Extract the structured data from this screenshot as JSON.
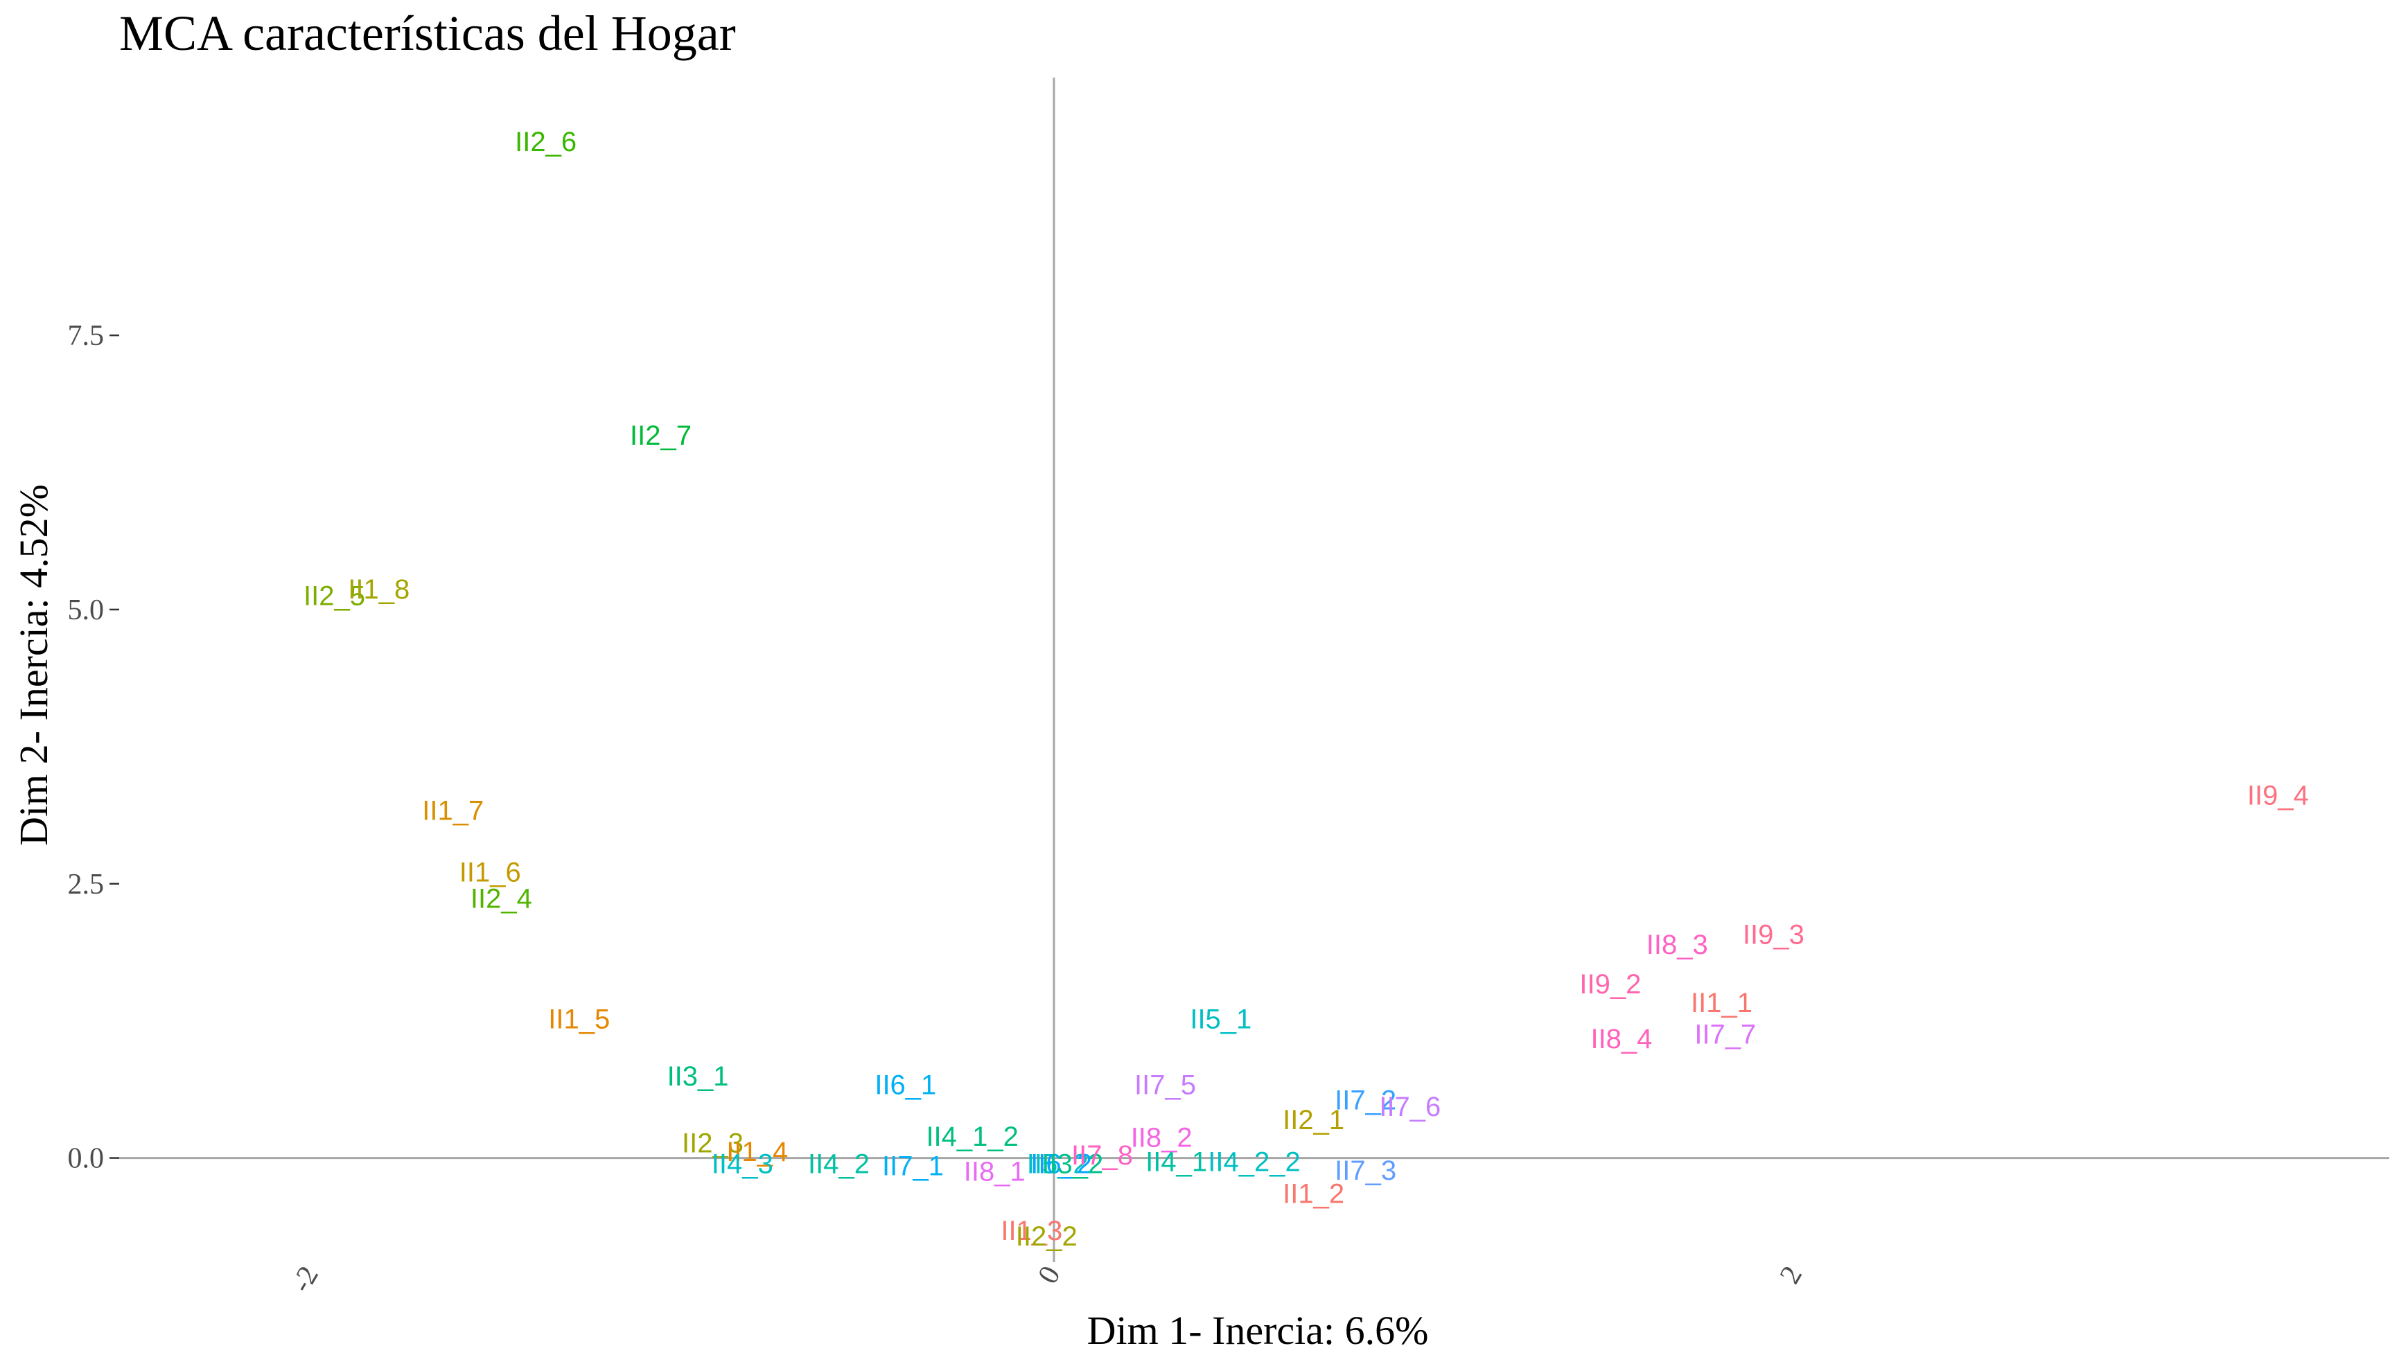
{
  "chart_data": {
    "type": "scatter",
    "title": "MCA características del Hogar",
    "xlabel": "Dim 1- Inercia: 6.6%",
    "ylabel": "Dim 2- Inercia: 4.52%",
    "xlim": [
      -2.52,
      3.6
    ],
    "ylim": [
      -0.95,
      9.85
    ],
    "x_ticks": [
      {
        "value": -2,
        "label": "-2"
      },
      {
        "value": 0,
        "label": "0"
      },
      {
        "value": 2,
        "label": "2"
      }
    ],
    "y_ticks": [
      {
        "value": 0,
        "label": "0.0"
      },
      {
        "value": 2.5,
        "label": "2.5"
      },
      {
        "value": 5,
        "label": "5.0"
      },
      {
        "value": 7.5,
        "label": "7.5"
      }
    ],
    "grid": false,
    "legend": "none",
    "points": [
      {
        "label": "II2_6",
        "x": -1.37,
        "y": 9.27,
        "color": "#39b600"
      },
      {
        "label": "II2_7",
        "x": -1.06,
        "y": 6.59,
        "color": "#00ba38"
      },
      {
        "label": "II2_5",
        "x": -1.94,
        "y": 5.13,
        "color": "#7cae00"
      },
      {
        "label": "II1_8",
        "x": -1.82,
        "y": 5.19,
        "color": "#a3a500"
      },
      {
        "label": "II1_7",
        "x": -1.62,
        "y": 3.17,
        "color": "#d89000"
      },
      {
        "label": "II1_6",
        "x": -1.52,
        "y": 2.61,
        "color": "#c49a00"
      },
      {
        "label": "II2_4",
        "x": -1.49,
        "y": 2.37,
        "color": "#53b400"
      },
      {
        "label": "II1_5",
        "x": -1.28,
        "y": 1.27,
        "color": "#e58700"
      },
      {
        "label": "II3_1",
        "x": -0.96,
        "y": 0.75,
        "color": "#00bf7d"
      },
      {
        "label": "II6_1",
        "x": -0.4,
        "y": 0.67,
        "color": "#00b0f6"
      },
      {
        "label": "II2_3",
        "x": -0.92,
        "y": 0.14,
        "color": "#9ea700"
      },
      {
        "label": "II1_4",
        "x": -0.8,
        "y": 0.06,
        "color": "#e58700"
      },
      {
        "label": "II4_3",
        "x": -0.84,
        "y": -0.05,
        "color": "#00bfc4"
      },
      {
        "label": "II4_2",
        "x": -0.58,
        "y": -0.05,
        "color": "#00c1a3"
      },
      {
        "label": "II7_1",
        "x": -0.38,
        "y": -0.07,
        "color": "#00b0f6"
      },
      {
        "label": "II4_1_2",
        "x": -0.22,
        "y": 0.2,
        "color": "#00bf7d"
      },
      {
        "label": "II8_1",
        "x": -0.16,
        "y": -0.12,
        "color": "#e76bf3"
      },
      {
        "label": "II1_3",
        "x": -0.06,
        "y": -0.66,
        "color": "#f8766d"
      },
      {
        "label": "II2_2",
        "x": -0.02,
        "y": -0.71,
        "color": "#a3a500"
      },
      {
        "label": "II5_2",
        "x": 0.01,
        "y": -0.05,
        "color": "#00bfc4"
      },
      {
        "label": "II6_2",
        "x": 0.02,
        "y": -0.05,
        "color": "#00a9ff"
      },
      {
        "label": "II3_2",
        "x": 0.05,
        "y": -0.05,
        "color": "#00c08b"
      },
      {
        "label": "II7_8",
        "x": 0.13,
        "y": 0.03,
        "color": "#ff61c3"
      },
      {
        "label": "II8_2",
        "x": 0.29,
        "y": 0.19,
        "color": "#f564e3"
      },
      {
        "label": "II4_1",
        "x": 0.33,
        "y": -0.03,
        "color": "#00c1a3"
      },
      {
        "label": "II4_2_2",
        "x": 0.54,
        "y": -0.03,
        "color": "#00bfc4"
      },
      {
        "label": "II7_5",
        "x": 0.3,
        "y": 0.67,
        "color": "#c77cff"
      },
      {
        "label": "II5_1",
        "x": 0.45,
        "y": 1.27,
        "color": "#00bfc4"
      },
      {
        "label": "II2_1",
        "x": 0.7,
        "y": 0.35,
        "color": "#b3a000"
      },
      {
        "label": "II1_2",
        "x": 0.7,
        "y": -0.32,
        "color": "#f8766d"
      },
      {
        "label": "II7_2",
        "x": 0.84,
        "y": 0.53,
        "color": "#35a2ff"
      },
      {
        "label": "II7_6",
        "x": 0.96,
        "y": 0.47,
        "color": "#c77cff"
      },
      {
        "label": "II7_3",
        "x": 0.84,
        "y": -0.11,
        "color": "#619cff"
      },
      {
        "label": "II8_4",
        "x": 1.53,
        "y": 1.09,
        "color": "#ff62bc"
      },
      {
        "label": "II9_2",
        "x": 1.5,
        "y": 1.59,
        "color": "#ff65ac"
      },
      {
        "label": "II8_3",
        "x": 1.68,
        "y": 1.95,
        "color": "#ff61c3"
      },
      {
        "label": "II9_3",
        "x": 1.94,
        "y": 2.04,
        "color": "#ff6c91"
      },
      {
        "label": "II1_1",
        "x": 1.8,
        "y": 1.42,
        "color": "#f8766d"
      },
      {
        "label": "II7_7",
        "x": 1.81,
        "y": 1.13,
        "color": "#dc71fa"
      },
      {
        "label": "II9_4",
        "x": 3.3,
        "y": 3.31,
        "color": "#fc717f"
      }
    ]
  }
}
